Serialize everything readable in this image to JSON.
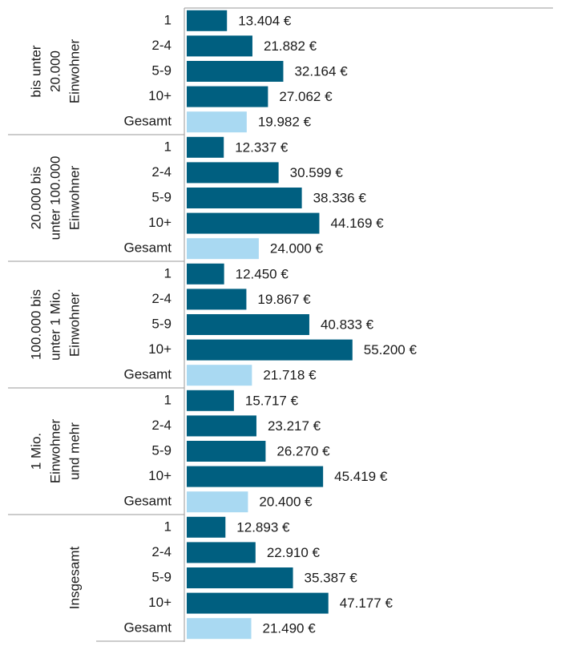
{
  "chart_data": {
    "type": "bar",
    "categories": [
      "1",
      "2-4",
      "5-9",
      "10+",
      "Gesamt"
    ],
    "color": "#005f80",
    "total_color": "#a9d9f2",
    "xlim": [
      0,
      122000
    ],
    "groups": [
      {
        "name_lines": [
          "bis unter",
          "20.000",
          "Einwohner"
        ],
        "values": [
          13404,
          21882,
          32164,
          27062,
          19982
        ],
        "value_labels": [
          "13.404 €",
          "21.882 €",
          "32.164 €",
          "27.062 €",
          "19.982 €"
        ]
      },
      {
        "name_lines": [
          "20.000 bis",
          "unter 100.000",
          "Einwohner"
        ],
        "values": [
          12337,
          30599,
          38336,
          44169,
          24000
        ],
        "value_labels": [
          "12.337 €",
          "30.599 €",
          "38.336 €",
          "44.169 €",
          "24.000 €"
        ]
      },
      {
        "name_lines": [
          "100.000 bis",
          "unter 1 Mio.",
          "Einwohner"
        ],
        "values": [
          12450,
          19867,
          40833,
          55200,
          21718
        ],
        "value_labels": [
          "12.450 €",
          "19.867 €",
          "40.833 €",
          "55.200 €",
          "21.718 €"
        ]
      },
      {
        "name_lines": [
          "1 Mio.",
          "Einwohner",
          "und mehr"
        ],
        "values": [
          15717,
          23217,
          26270,
          45419,
          20400
        ],
        "value_labels": [
          "15.717 €",
          "23.217 €",
          "26.270 €",
          "45.419 €",
          "20.400 €"
        ]
      },
      {
        "name_lines": [
          "Insgesamt"
        ],
        "values": [
          12893,
          22910,
          35387,
          47177,
          21490
        ],
        "value_labels": [
          "12.893 €",
          "22.910 €",
          "35.387 €",
          "47.177 €",
          "21.490 €"
        ]
      }
    ]
  }
}
